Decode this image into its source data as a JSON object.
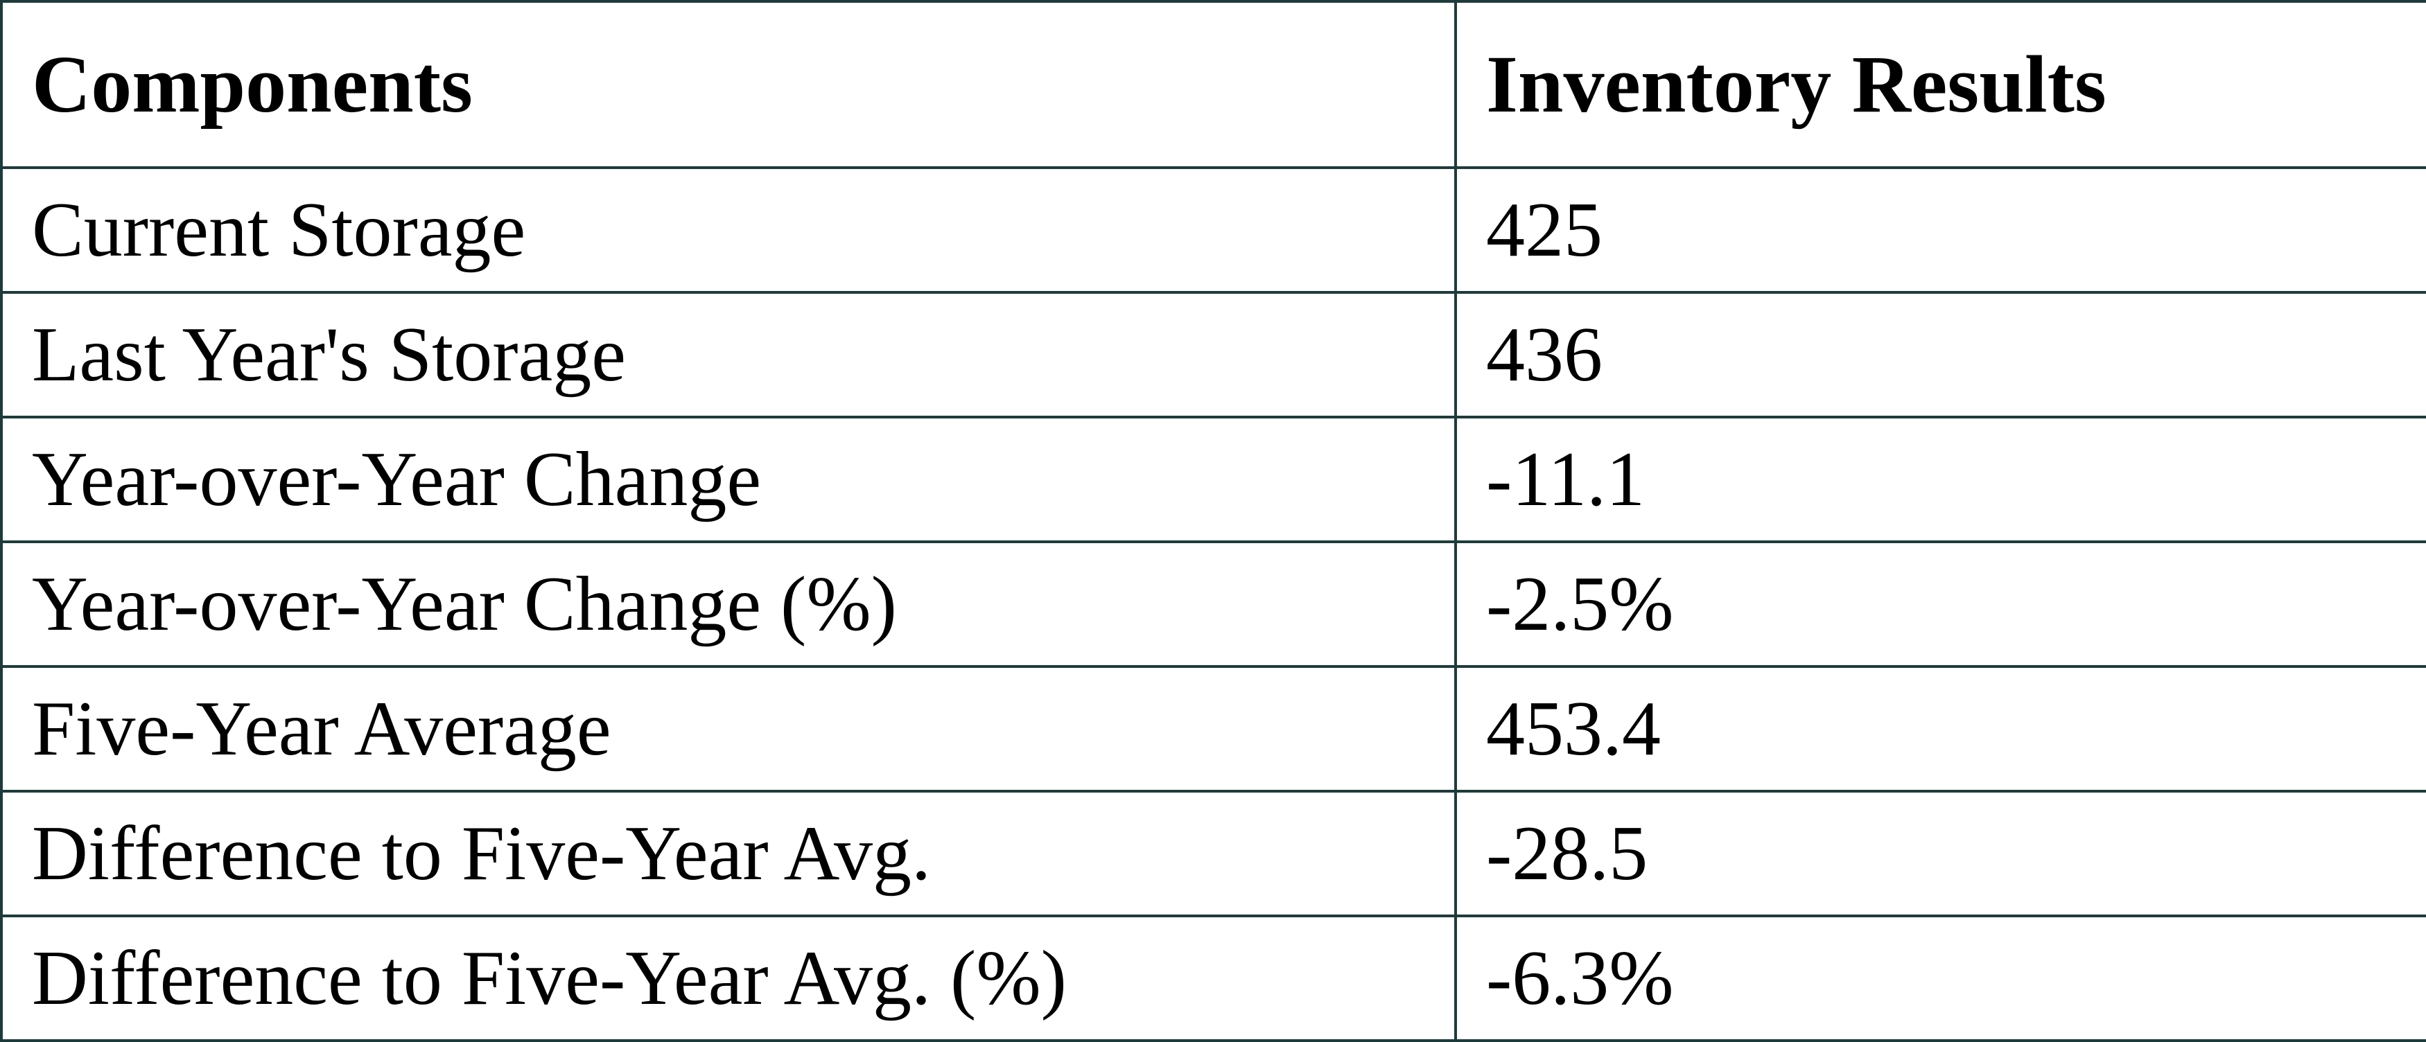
{
  "table": {
    "header": [
      "Components",
      "Inventory Results"
    ],
    "rows": [
      [
        "Current Storage",
        "425"
      ],
      [
        "Last Year's Storage",
        "436"
      ],
      [
        "Year-over-Year Change",
        "-11.1"
      ],
      [
        "Year-over-Year Change (%)",
        "-2.5%"
      ],
      [
        "Five-Year Average",
        "453.4"
      ],
      [
        "Difference to Five-Year Avg.",
        "-28.5"
      ],
      [
        "Difference to Five-Year Avg. (%)",
        "-6.3%"
      ]
    ]
  }
}
